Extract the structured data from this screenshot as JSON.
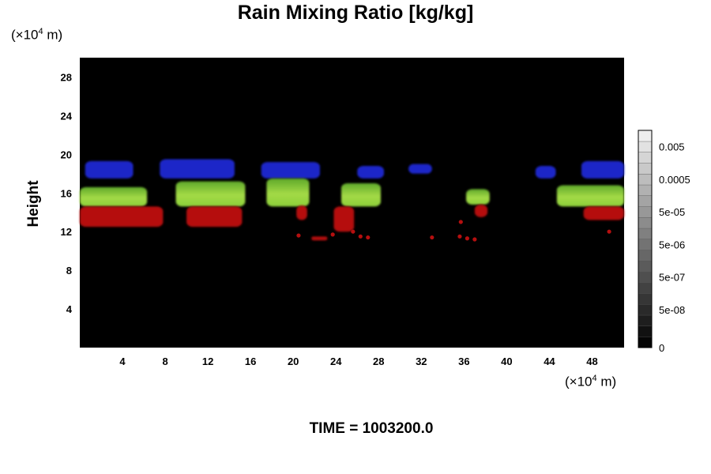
{
  "title": "Rain Mixing Ratio [kg/kg]",
  "time_label": "TIME = 1003200.0",
  "y_unit": {
    "prefix": "(×10",
    "exp": "4",
    "suffix": " m)"
  },
  "x_unit": {
    "prefix": "(×10",
    "exp": "4",
    "suffix": " m)"
  },
  "colors": {
    "background": "#000000",
    "level_low": "#b50f0f",
    "level_mid": "#9ad63c",
    "level_mid_edge": "#2f8a12",
    "level_high": "#1c25c8"
  },
  "chart_data": {
    "type": "heatmap",
    "title": "Rain Mixing Ratio [kg/kg]",
    "xlabel": "",
    "ylabel": "Height",
    "xlim": [
      0,
      51
    ],
    "ylim": [
      0,
      30
    ],
    "x_ticks": [
      4,
      8,
      12,
      16,
      20,
      24,
      28,
      32,
      36,
      40,
      44,
      48
    ],
    "y_ticks": [
      4,
      8,
      12,
      16,
      20,
      24,
      28
    ],
    "colorbar": {
      "labels": [
        "0.005",
        "0.0005",
        "5e-05",
        "5e-06",
        "5e-07",
        "5e-08",
        "0"
      ],
      "levels": 20
    },
    "regions": [
      {
        "layer": "high",
        "x": [
          0.5,
          5
        ],
        "y": [
          17.5,
          19.3
        ]
      },
      {
        "layer": "high",
        "x": [
          7.5,
          14.5
        ],
        "y": [
          17.5,
          19.5
        ]
      },
      {
        "layer": "high",
        "x": [
          17,
          22.5
        ],
        "y": [
          17.5,
          19.2
        ]
      },
      {
        "layer": "high",
        "x": [
          26,
          28.5
        ],
        "y": [
          17.5,
          18.8
        ]
      },
      {
        "layer": "high",
        "x": [
          30.8,
          33
        ],
        "y": [
          18,
          19
        ]
      },
      {
        "layer": "high",
        "x": [
          42.7,
          44.6
        ],
        "y": [
          17.5,
          18.8
        ]
      },
      {
        "layer": "high",
        "x": [
          47,
          51
        ],
        "y": [
          17.5,
          19.3
        ]
      },
      {
        "layer": "mid",
        "x": [
          0,
          6.3
        ],
        "y": [
          14.6,
          16.6
        ]
      },
      {
        "layer": "mid",
        "x": [
          9,
          15.5
        ],
        "y": [
          14.6,
          17.2
        ]
      },
      {
        "layer": "mid",
        "x": [
          17.5,
          21.5
        ],
        "y": [
          14.6,
          17.5
        ]
      },
      {
        "layer": "mid",
        "x": [
          24.5,
          28.2
        ],
        "y": [
          14.6,
          17
        ]
      },
      {
        "layer": "mid",
        "x": [
          36.2,
          38.4
        ],
        "y": [
          14.8,
          16.4
        ]
      },
      {
        "layer": "mid",
        "x": [
          44.7,
          51
        ],
        "y": [
          14.6,
          16.8
        ]
      },
      {
        "layer": "low",
        "x": [
          0,
          7.8
        ],
        "y": [
          12.5,
          14.6
        ]
      },
      {
        "layer": "low",
        "x": [
          10,
          15.2
        ],
        "y": [
          12.5,
          14.6
        ]
      },
      {
        "layer": "low",
        "x": [
          20.3,
          21.3
        ],
        "y": [
          13.2,
          14.7
        ]
      },
      {
        "layer": "low",
        "x": [
          23.8,
          25.7
        ],
        "y": [
          12,
          14.6
        ]
      },
      {
        "layer": "low",
        "x": [
          37,
          38.2
        ],
        "y": [
          13.5,
          14.8
        ]
      },
      {
        "layer": "low",
        "x": [
          47.2,
          51
        ],
        "y": [
          13.2,
          14.6
        ]
      },
      {
        "layer": "low",
        "x": [
          21.7,
          23.2
        ],
        "y": [
          11.1,
          11.5
        ]
      }
    ],
    "points": [
      {
        "x": 20.5,
        "y": 11.6
      },
      {
        "x": 23.7,
        "y": 11.7
      },
      {
        "x": 25.6,
        "y": 12.0
      },
      {
        "x": 26.3,
        "y": 11.5
      },
      {
        "x": 27.0,
        "y": 11.4
      },
      {
        "x": 33.0,
        "y": 11.4
      },
      {
        "x": 35.6,
        "y": 11.5
      },
      {
        "x": 36.3,
        "y": 11.3
      },
      {
        "x": 37.0,
        "y": 11.2
      },
      {
        "x": 35.7,
        "y": 13.0
      },
      {
        "x": 49.6,
        "y": 12.0
      }
    ]
  }
}
